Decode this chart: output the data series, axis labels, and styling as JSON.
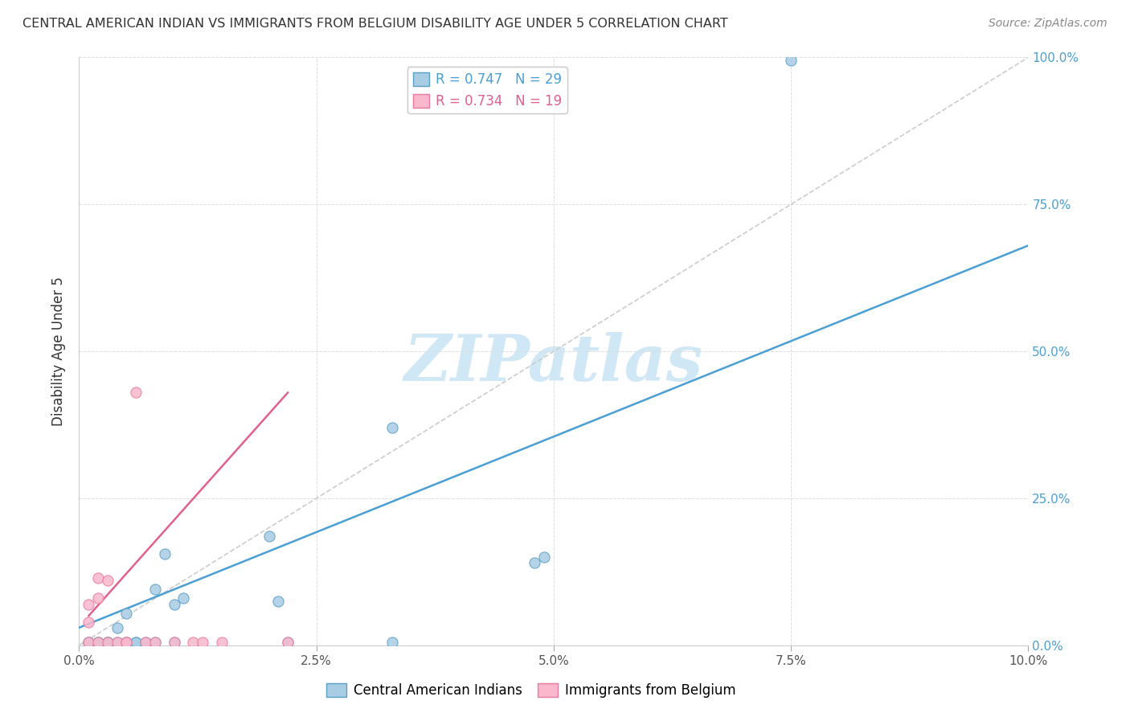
{
  "title": "CENTRAL AMERICAN INDIAN VS IMMIGRANTS FROM BELGIUM DISABILITY AGE UNDER 5 CORRELATION CHART",
  "source": "Source: ZipAtlas.com",
  "ylabel": "Disability Age Under 5",
  "r_blue": 0.747,
  "n_blue": 29,
  "r_pink": 0.734,
  "n_pink": 19,
  "blue_fill": "#a8cce4",
  "pink_fill": "#f9b8cb",
  "blue_edge": "#5a9fc5",
  "pink_edge": "#e87aa0",
  "blue_line_color": "#4a9fd4",
  "pink_line_color": "#e06090",
  "watermark_color": "#d0e8f5",
  "blue_scatter_x": [
    0.001,
    0.001,
    0.002,
    0.002,
    0.003,
    0.003,
    0.003,
    0.004,
    0.004,
    0.005,
    0.005,
    0.005,
    0.006,
    0.006,
    0.007,
    0.008,
    0.008,
    0.009,
    0.01,
    0.01,
    0.011,
    0.02,
    0.021,
    0.022,
    0.033,
    0.033,
    0.048,
    0.049,
    0.075
  ],
  "blue_scatter_y": [
    0.005,
    0.005,
    0.005,
    0.005,
    0.005,
    0.005,
    0.005,
    0.005,
    0.03,
    0.005,
    0.005,
    0.055,
    0.005,
    0.005,
    0.005,
    0.005,
    0.095,
    0.155,
    0.005,
    0.07,
    0.08,
    0.185,
    0.075,
    0.005,
    0.37,
    0.005,
    0.14,
    0.15,
    0.995
  ],
  "pink_scatter_x": [
    0.001,
    0.001,
    0.001,
    0.002,
    0.002,
    0.002,
    0.003,
    0.003,
    0.004,
    0.005,
    0.005,
    0.006,
    0.007,
    0.008,
    0.01,
    0.012,
    0.013,
    0.015,
    0.022
  ],
  "pink_scatter_y": [
    0.005,
    0.04,
    0.07,
    0.005,
    0.08,
    0.115,
    0.005,
    0.11,
    0.005,
    0.005,
    0.005,
    0.43,
    0.005,
    0.005,
    0.005,
    0.005,
    0.005,
    0.005,
    0.005
  ],
  "xlim": [
    0.0,
    0.1
  ],
  "ylim": [
    0.0,
    1.0
  ],
  "xticks": [
    0.0,
    0.025,
    0.05,
    0.075,
    0.1
  ],
  "yticks": [
    0.0,
    0.25,
    0.5,
    0.75,
    1.0
  ],
  "xticklabels": [
    "0.0%",
    "2.5%",
    "5.0%",
    "7.5%",
    "10.0%"
  ],
  "right_yticklabels": [
    "0.0%",
    "25.0%",
    "50.0%",
    "75.0%",
    "100.0%"
  ],
  "blue_line_x": [
    0.0,
    0.1
  ],
  "blue_line_y": [
    0.03,
    0.68
  ],
  "pink_line_x": [
    0.001,
    0.022
  ],
  "pink_line_y": [
    0.05,
    0.43
  ],
  "diag_line_x": [
    0.0,
    0.1
  ],
  "diag_line_y": [
    0.0,
    1.0
  ],
  "legend_labels": [
    "Central American Indians",
    "Immigrants from Belgium"
  ]
}
